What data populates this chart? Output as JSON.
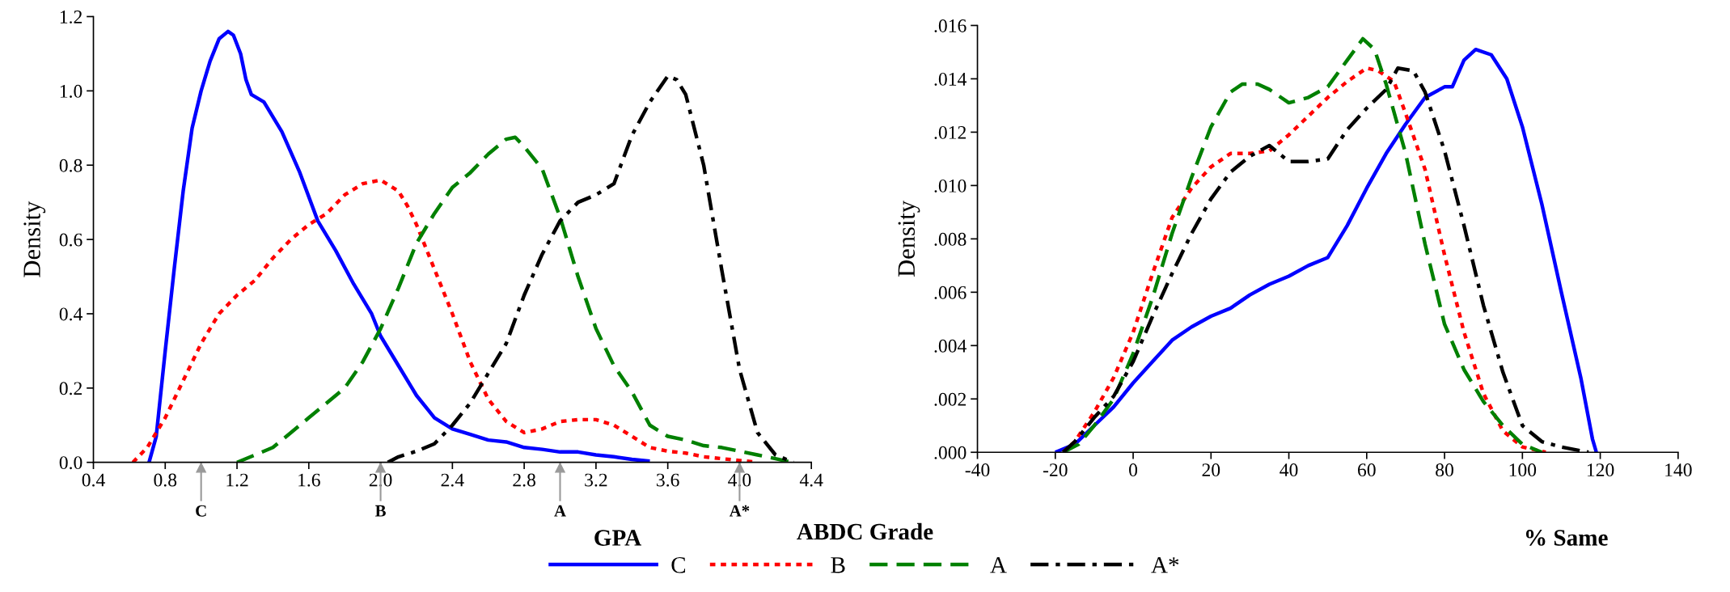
{
  "chart_data": [
    {
      "type": "line",
      "xlabel": "GPA",
      "ylabel": "Density",
      "legend": "bottom",
      "legend_title": "ABDC Grade",
      "xlim": [
        0.4,
        4.4
      ],
      "xticks": [
        0.4,
        0.8,
        1.2,
        1.6,
        {
          "value": 2,
          "label": "2.0"
        },
        2.4,
        2.8,
        3.2,
        3.6,
        {
          "value": 4,
          "label": "4.0"
        },
        4.4
      ],
      "ylim": [
        0.0,
        1.2
      ],
      "yticks": [
        {
          "value": 0,
          "label": "0.0"
        },
        0.2,
        0.4,
        0.6,
        0.8,
        {
          "value": 1,
          "label": "1.0"
        },
        1.2
      ],
      "grid": false,
      "ref_lines": [
        {
          "axis": "x",
          "value": 1.0,
          "label": "C",
          "color": "#999999"
        },
        {
          "axis": "x",
          "value": 2.0,
          "label": "B",
          "color": "#999999"
        },
        {
          "axis": "x",
          "value": 3.0,
          "label": "A",
          "color": "#999999"
        },
        {
          "axis": "x",
          "value": 4.0,
          "label": "A*",
          "color": "#999999"
        }
      ],
      "series": [
        {
          "name": "C",
          "color": "#0000ff",
          "line_style": "solid",
          "x": [
            0.71,
            0.75,
            0.8,
            0.85,
            0.9,
            0.95,
            1.0,
            1.05,
            1.1,
            1.15,
            1.18,
            1.22,
            1.25,
            1.28,
            1.35,
            1.45,
            1.55,
            1.65,
            1.75,
            1.85,
            1.95,
            2.0,
            2.1,
            2.2,
            2.3,
            2.4,
            2.5,
            2.6,
            2.7,
            2.8,
            2.9,
            3.0,
            3.1,
            3.2,
            3.3,
            3.4,
            3.5
          ],
          "values": [
            0,
            0.07,
            0.3,
            0.52,
            0.73,
            0.9,
            1.0,
            1.08,
            1.14,
            1.16,
            1.15,
            1.1,
            1.03,
            0.99,
            0.97,
            0.89,
            0.78,
            0.65,
            0.57,
            0.48,
            0.4,
            0.34,
            0.26,
            0.18,
            0.12,
            0.09,
            0.075,
            0.06,
            0.055,
            0.04,
            0.035,
            0.028,
            0.028,
            0.02,
            0.015,
            0.008,
            0.003
          ]
        },
        {
          "name": "B",
          "color": "#ff0000",
          "line_style": "dotted",
          "x": [
            0.62,
            0.7,
            0.8,
            0.9,
            1.0,
            1.1,
            1.2,
            1.3,
            1.4,
            1.5,
            1.6,
            1.7,
            1.8,
            1.9,
            2.0,
            2.1,
            2.15,
            2.2,
            2.3,
            2.4,
            2.5,
            2.6,
            2.7,
            2.8,
            2.9,
            3.0,
            3.1,
            3.2,
            3.3,
            3.4,
            3.5,
            3.6,
            3.7,
            3.8,
            3.9,
            4.0,
            4.1
          ],
          "values": [
            0,
            0.04,
            0.12,
            0.22,
            0.32,
            0.4,
            0.45,
            0.49,
            0.55,
            0.6,
            0.64,
            0.67,
            0.72,
            0.75,
            0.76,
            0.73,
            0.69,
            0.64,
            0.52,
            0.4,
            0.27,
            0.17,
            0.11,
            0.08,
            0.09,
            0.11,
            0.115,
            0.115,
            0.1,
            0.07,
            0.04,
            0.03,
            0.025,
            0.015,
            0.01,
            0.005,
            0.0
          ]
        },
        {
          "name": "A",
          "color": "#008000",
          "line_style": "dashed",
          "x": [
            1.2,
            1.3,
            1.4,
            1.5,
            1.6,
            1.7,
            1.8,
            1.9,
            2.0,
            2.1,
            2.2,
            2.3,
            2.4,
            2.5,
            2.6,
            2.7,
            2.75,
            2.8,
            2.9,
            3.0,
            3.1,
            3.2,
            3.3,
            3.4,
            3.5,
            3.6,
            3.7,
            3.8,
            3.9,
            4.0,
            4.1,
            4.2,
            4.29
          ],
          "values": [
            0,
            0.02,
            0.04,
            0.08,
            0.12,
            0.16,
            0.2,
            0.27,
            0.36,
            0.47,
            0.59,
            0.67,
            0.74,
            0.78,
            0.83,
            0.87,
            0.875,
            0.85,
            0.79,
            0.66,
            0.5,
            0.36,
            0.26,
            0.19,
            0.1,
            0.07,
            0.06,
            0.045,
            0.04,
            0.03,
            0.02,
            0.01,
            0
          ]
        },
        {
          "name": "A*",
          "color": "#000000",
          "line_style": "dashdot",
          "x": [
            2.04,
            2.1,
            2.2,
            2.3,
            2.4,
            2.5,
            2.6,
            2.7,
            2.8,
            2.9,
            3.0,
            3.1,
            3.2,
            3.3,
            3.4,
            3.5,
            3.6,
            3.65,
            3.7,
            3.8,
            3.9,
            4.0,
            4.1,
            4.2,
            4.3
          ],
          "values": [
            0,
            0.015,
            0.03,
            0.05,
            0.1,
            0.16,
            0.24,
            0.32,
            0.45,
            0.56,
            0.65,
            0.7,
            0.72,
            0.75,
            0.88,
            0.97,
            1.04,
            1.03,
            0.99,
            0.8,
            0.52,
            0.25,
            0.08,
            0.02,
            0
          ]
        }
      ]
    },
    {
      "type": "line",
      "xlabel": "% Same",
      "ylabel": "Density",
      "grid": false,
      "xlim": [
        -40,
        140
      ],
      "xticks": [
        -40,
        -20,
        0,
        20,
        40,
        60,
        80,
        100,
        120,
        140
      ],
      "ylim": [
        0,
        0.016
      ],
      "yticks": [
        {
          "value": 0,
          "label": ".000"
        },
        {
          "value": 0.002,
          "label": ".002"
        },
        {
          "value": 0.004,
          "label": ".004"
        },
        {
          "value": 0.006,
          "label": ".006"
        },
        {
          "value": 0.008,
          "label": ".008"
        },
        {
          "value": 0.01,
          "label": ".010"
        },
        {
          "value": 0.012,
          "label": ".012"
        },
        {
          "value": 0.014,
          "label": ".014"
        },
        {
          "value": 0.016,
          "label": ".016"
        }
      ],
      "series": [
        {
          "color": "#0000ff",
          "line_style": "solid",
          "x": [
            -20,
            -15,
            -10,
            -5,
            0,
            5,
            10,
            15,
            20,
            25,
            30,
            35,
            40,
            45,
            50,
            55,
            60,
            65,
            70,
            75,
            80,
            82,
            85,
            88,
            92,
            96,
            100,
            105,
            110,
            115,
            118,
            119
          ],
          "values": [
            0,
            0.0003,
            0.001,
            0.0017,
            0.0026,
            0.0034,
            0.0042,
            0.0047,
            0.0051,
            0.0054,
            0.0059,
            0.0063,
            0.0066,
            0.007,
            0.0073,
            0.0085,
            0.0099,
            0.0112,
            0.0123,
            0.0133,
            0.0137,
            0.0137,
            0.0147,
            0.0151,
            0.0149,
            0.014,
            0.0122,
            0.0093,
            0.006,
            0.0028,
            0.0005,
            0
          ]
        },
        {
          "color": "#ff0000",
          "line_style": "dotted",
          "x": [
            -18,
            -15,
            -10,
            -5,
            0,
            5,
            10,
            15,
            20,
            25,
            30,
            35,
            40,
            45,
            50,
            55,
            60,
            63,
            67,
            70,
            75,
            80,
            85,
            90,
            95,
            100,
            106
          ],
          "values": [
            0,
            0.0004,
            0.0015,
            0.0028,
            0.0045,
            0.0067,
            0.0088,
            0.0099,
            0.0107,
            0.0112,
            0.0112,
            0.0113,
            0.0119,
            0.0126,
            0.0133,
            0.0139,
            0.0144,
            0.0143,
            0.0139,
            0.0127,
            0.0106,
            0.0074,
            0.0045,
            0.0022,
            0.0008,
            0.0002,
            0
          ]
        },
        {
          "color": "#008000",
          "line_style": "dashed",
          "x": [
            -18,
            -14,
            -10,
            -5,
            0,
            5,
            10,
            15,
            20,
            25,
            28,
            32,
            35,
            40,
            45,
            50,
            55,
            59,
            62,
            65,
            70,
            75,
            80,
            85,
            90,
            95,
            100,
            105
          ],
          "values": [
            0,
            0.0003,
            0.001,
            0.002,
            0.0037,
            0.0058,
            0.0082,
            0.0103,
            0.0122,
            0.0135,
            0.0138,
            0.0138,
            0.0136,
            0.0131,
            0.0133,
            0.0137,
            0.0147,
            0.0155,
            0.0151,
            0.0138,
            0.0112,
            0.0078,
            0.0048,
            0.0031,
            0.0019,
            0.001,
            0.0003,
            0
          ]
        },
        {
          "color": "#000000",
          "line_style": "dashdot",
          "x": [
            -18,
            -15,
            -10,
            -5,
            0,
            5,
            10,
            15,
            20,
            25,
            30,
            35,
            40,
            45,
            50,
            55,
            60,
            65,
            68,
            72,
            75,
            80,
            85,
            90,
            95,
            100,
            105,
            110,
            117
          ],
          "values": [
            0,
            0.0004,
            0.0013,
            0.0021,
            0.0034,
            0.0051,
            0.0067,
            0.0082,
            0.0095,
            0.0105,
            0.0111,
            0.0115,
            0.0109,
            0.0109,
            0.011,
            0.0121,
            0.0129,
            0.0136,
            0.0144,
            0.0143,
            0.0135,
            0.0113,
            0.0085,
            0.0055,
            0.003,
            0.001,
            0.0004,
            0.0002,
            0
          ]
        }
      ]
    }
  ]
}
